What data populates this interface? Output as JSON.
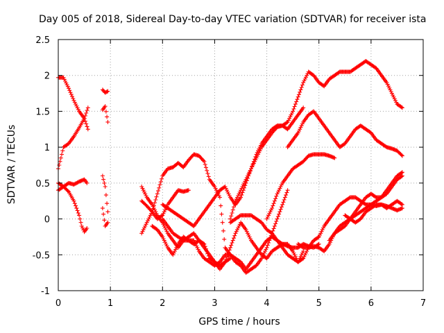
{
  "chart_data": {
    "type": "scatter",
    "title": "Day 005 of 2018, Sidereal Day-to-day VTEC variation (SDTVAR) for receiver ista",
    "xlabel": "GPS time / hours",
    "ylabel": "SDTVAR / TECUs",
    "xlim": [
      0,
      7
    ],
    "ylim": [
      -1,
      2.5
    ],
    "xticks": [
      "0",
      "1",
      "2",
      "3",
      "4",
      "5",
      "6",
      "7"
    ],
    "yticks": [
      "-1",
      "-0.5",
      "0",
      "0.5",
      "1",
      "1.5",
      "2",
      "2.5"
    ],
    "grid": true,
    "marker": "plus",
    "color": "#ff0000",
    "series": [
      {
        "x": [
          0.0,
          0.1,
          0.2,
          0.3,
          0.4,
          0.5,
          0.57
        ],
        "y": [
          1.97,
          1.97,
          1.82,
          1.65,
          1.5,
          1.4,
          1.25
        ]
      },
      {
        "x": [
          0.0,
          0.05,
          0.1,
          0.2,
          0.3,
          0.4,
          0.5,
          0.57
        ],
        "y": [
          0.7,
          0.85,
          1.0,
          1.05,
          1.15,
          1.27,
          1.4,
          1.55
        ]
      },
      {
        "x": [
          0.0,
          0.1,
          0.2,
          0.3,
          0.4,
          0.5,
          0.55
        ],
        "y": [
          0.5,
          0.45,
          0.5,
          0.48,
          0.52,
          0.55,
          0.5
        ]
      },
      {
        "x": [
          0.0,
          0.1,
          0.2,
          0.3,
          0.4,
          0.45,
          0.5,
          0.55
        ],
        "y": [
          0.4,
          0.45,
          0.38,
          0.25,
          0.05,
          -0.1,
          -0.18,
          -0.13
        ]
      },
      {
        "x": [
          0.85,
          0.9,
          0.95
        ],
        "y": [
          1.8,
          1.76,
          1.78
        ]
      },
      {
        "x": [
          0.85,
          0.9,
          0.95
        ],
        "y": [
          1.52,
          1.57,
          1.35
        ]
      },
      {
        "x": [
          0.85,
          0.9,
          0.95
        ],
        "y": [
          0.6,
          0.45,
          0.1
        ]
      },
      {
        "x": [
          0.85,
          0.9,
          0.95
        ],
        "y": [
          0.15,
          -0.1,
          -0.05
        ]
      },
      {
        "x": [
          1.6,
          1.7,
          1.8,
          1.9,
          2.0,
          2.1,
          2.2,
          2.3,
          2.4,
          2.5
        ],
        "y": [
          0.25,
          0.18,
          0.1,
          0.0,
          0.05,
          0.2,
          0.3,
          0.4,
          0.38,
          0.4
        ]
      },
      {
        "x": [
          1.6,
          1.7,
          1.8,
          1.9,
          2.0,
          2.1,
          2.2,
          2.3,
          2.4,
          2.5,
          2.6,
          2.7,
          2.8,
          2.9,
          3.0,
          3.1,
          3.2,
          3.3,
          3.4,
          3.5,
          3.6,
          3.7,
          3.8,
          3.9,
          4.0,
          4.1,
          4.2,
          4.3,
          4.4,
          4.5,
          4.6,
          4.7
        ],
        "y": [
          -0.2,
          -0.05,
          0.1,
          0.35,
          0.6,
          0.7,
          0.72,
          0.78,
          0.72,
          0.82,
          0.9,
          0.88,
          0.8,
          0.55,
          0.45,
          0.3,
          -0.4,
          -0.5,
          -0.55,
          -0.6,
          -0.7,
          -0.6,
          -0.5,
          -0.4,
          -0.3,
          -0.25,
          -0.3,
          -0.4,
          -0.5,
          -0.55,
          -0.6,
          -0.45
        ]
      },
      {
        "x": [
          1.6,
          1.7,
          1.8,
          1.9,
          2.0,
          2.1,
          2.2,
          2.3,
          2.4,
          2.5,
          2.6,
          2.7,
          2.8,
          2.9,
          3.0,
          3.1,
          3.2,
          3.3,
          3.4,
          3.5,
          3.6,
          3.7,
          3.8,
          3.9,
          4.0,
          4.1,
          4.2,
          4.3,
          4.4,
          4.5,
          4.6,
          4.7,
          4.8,
          4.9,
          5.0
        ],
        "y": [
          0.45,
          0.3,
          0.2,
          0.05,
          -0.05,
          -0.2,
          -0.3,
          -0.4,
          -0.3,
          -0.25,
          -0.2,
          -0.3,
          -0.4,
          -0.5,
          -0.6,
          -0.65,
          -0.6,
          -0.4,
          -0.2,
          -0.05,
          -0.15,
          -0.3,
          -0.4,
          -0.5,
          -0.55,
          -0.45,
          -0.4,
          -0.35,
          -0.38,
          -0.4,
          -0.4,
          -0.35,
          -0.38,
          -0.4,
          -0.35
        ]
      },
      {
        "x": [
          1.8,
          1.9,
          2.0,
          2.1,
          2.2,
          2.3,
          2.4,
          2.5,
          2.6,
          2.7,
          2.8,
          2.9,
          3.0,
          3.1,
          3.2,
          3.3
        ],
        "y": [
          -0.1,
          -0.15,
          -0.25,
          -0.4,
          -0.5,
          -0.35,
          -0.25,
          -0.3,
          -0.35,
          -0.3,
          -0.35,
          -0.55,
          -0.6,
          -0.7,
          -0.6,
          -0.55
        ]
      },
      {
        "x": [
          2.0,
          2.1,
          2.2,
          2.3,
          2.4,
          2.5,
          2.6,
          2.7,
          2.8,
          2.9,
          3.0,
          3.1,
          3.2,
          3.3,
          3.4,
          3.5,
          3.6,
          3.7,
          3.8,
          3.9,
          4.0,
          4.1,
          4.2,
          4.3,
          4.4
        ],
        "y": [
          0.0,
          -0.1,
          -0.2,
          -0.25,
          -0.3,
          -0.3,
          -0.3,
          -0.45,
          -0.55,
          -0.6,
          -0.65,
          -0.6,
          -0.5,
          -0.5,
          -0.6,
          -0.65,
          -0.75,
          -0.7,
          -0.65,
          -0.55,
          -0.4,
          -0.2,
          0.0,
          0.2,
          0.4
        ]
      },
      {
        "x": [
          2.0,
          2.1,
          2.2,
          2.3,
          2.4,
          2.5,
          2.6,
          2.7,
          2.8,
          2.9,
          3.0,
          3.1,
          3.2,
          3.3,
          3.4,
          3.5,
          3.6,
          3.7,
          3.8,
          3.9,
          4.0,
          4.1,
          4.2,
          4.3,
          4.4,
          4.5,
          4.6,
          4.7
        ],
        "y": [
          0.2,
          0.15,
          0.1,
          0.05,
          0.0,
          -0.05,
          -0.1,
          0.0,
          0.1,
          0.2,
          0.3,
          0.4,
          0.45,
          0.3,
          0.2,
          0.3,
          0.5,
          0.7,
          0.9,
          1.05,
          1.15,
          1.25,
          1.3,
          1.3,
          1.25,
          1.35,
          1.45,
          1.55
        ]
      },
      {
        "x": [
          3.3,
          3.4,
          3.5,
          3.6,
          3.7,
          3.8,
          3.9,
          4.0,
          4.1,
          4.2,
          4.3,
          4.4,
          4.5,
          4.6,
          4.7,
          4.8,
          4.9,
          5.0,
          5.1,
          5.2,
          5.3,
          5.4,
          5.5,
          5.6,
          5.7,
          5.8,
          5.9,
          6.0,
          6.1,
          6.2,
          6.3,
          6.4,
          6.5,
          6.6
        ],
        "y": [
          0.0,
          0.25,
          0.4,
          0.55,
          0.7,
          0.85,
          1.0,
          1.1,
          1.2,
          1.28,
          1.3,
          1.35,
          1.5,
          1.7,
          1.9,
          2.05,
          2.0,
          1.9,
          1.85,
          1.95,
          2.0,
          2.05,
          2.05,
          2.05,
          2.1,
          2.15,
          2.2,
          2.15,
          2.1,
          2.0,
          1.9,
          1.75,
          1.6,
          1.55
        ]
      },
      {
        "x": [
          3.3,
          3.4,
          3.5,
          3.6,
          3.7,
          3.8,
          3.9,
          4.0,
          4.1,
          4.2,
          4.3,
          4.4,
          4.5,
          4.6,
          4.7,
          4.8,
          4.9,
          5.0,
          5.1,
          5.2,
          5.3,
          5.4,
          5.5,
          5.6,
          5.7,
          5.8,
          5.9,
          6.0,
          6.1,
          6.2,
          6.3,
          6.4,
          6.5,
          6.6
        ],
        "y": [
          -0.05,
          0.0,
          0.05,
          0.05,
          0.05,
          0.0,
          -0.05,
          -0.15,
          -0.2,
          -0.3,
          -0.35,
          -0.35,
          -0.45,
          -0.6,
          -0.55,
          -0.4,
          -0.3,
          -0.25,
          -0.1,
          0.0,
          0.1,
          0.2,
          0.25,
          0.3,
          0.3,
          0.25,
          0.2,
          0.2,
          0.18,
          0.2,
          0.18,
          0.15,
          0.12,
          0.15
        ]
      },
      {
        "x": [
          4.0,
          4.1,
          4.2,
          4.3,
          4.4,
          4.5,
          4.6,
          4.7,
          4.8,
          4.9,
          5.0,
          5.1,
          5.2,
          5.3
        ],
        "y": [
          0.0,
          0.15,
          0.35,
          0.5,
          0.6,
          0.7,
          0.75,
          0.8,
          0.88,
          0.9,
          0.9,
          0.9,
          0.88,
          0.85
        ]
      },
      {
        "x": [
          4.4,
          4.5,
          4.6,
          4.7,
          4.8,
          4.9,
          5.0,
          5.1,
          5.2,
          5.3,
          5.4,
          5.5,
          5.6,
          5.7,
          5.8,
          5.9,
          6.0,
          6.1,
          6.2,
          6.3,
          6.4,
          6.5,
          6.6
        ],
        "y": [
          1.0,
          1.1,
          1.2,
          1.35,
          1.45,
          1.5,
          1.4,
          1.3,
          1.2,
          1.1,
          1.0,
          1.05,
          1.15,
          1.25,
          1.3,
          1.25,
          1.2,
          1.1,
          1.05,
          1.0,
          0.98,
          0.95,
          0.88
        ]
      },
      {
        "x": [
          4.6,
          4.7,
          4.8,
          4.9,
          5.0,
          5.1,
          5.2,
          5.3,
          5.4,
          5.5,
          5.6,
          5.7,
          5.8,
          5.9,
          6.0,
          6.1,
          6.2,
          6.3,
          6.4,
          6.5,
          6.6
        ],
        "y": [
          -0.35,
          -0.4,
          -0.4,
          -0.38,
          -0.4,
          -0.45,
          -0.35,
          -0.2,
          -0.1,
          -0.05,
          0.0,
          0.1,
          0.2,
          0.3,
          0.35,
          0.3,
          0.3,
          0.4,
          0.5,
          0.6,
          0.65
        ]
      },
      {
        "x": [
          5.2,
          5.3,
          5.4,
          5.5,
          5.6,
          5.7,
          5.8,
          5.9,
          6.0,
          6.1,
          6.2,
          6.3,
          6.4,
          6.5,
          6.6
        ],
        "y": [
          -0.3,
          -0.2,
          -0.15,
          -0.1,
          0.0,
          0.05,
          0.1,
          0.15,
          0.2,
          0.25,
          0.3,
          0.35,
          0.45,
          0.55,
          0.6
        ]
      },
      {
        "x": [
          5.5,
          5.6,
          5.7,
          5.8,
          5.9,
          6.0,
          6.1,
          6.2,
          6.3,
          6.4,
          6.5,
          6.6
        ],
        "y": [
          0.05,
          0.0,
          -0.05,
          0.0,
          0.1,
          0.15,
          0.2,
          0.2,
          0.15,
          0.2,
          0.25,
          0.2
        ]
      }
    ]
  }
}
